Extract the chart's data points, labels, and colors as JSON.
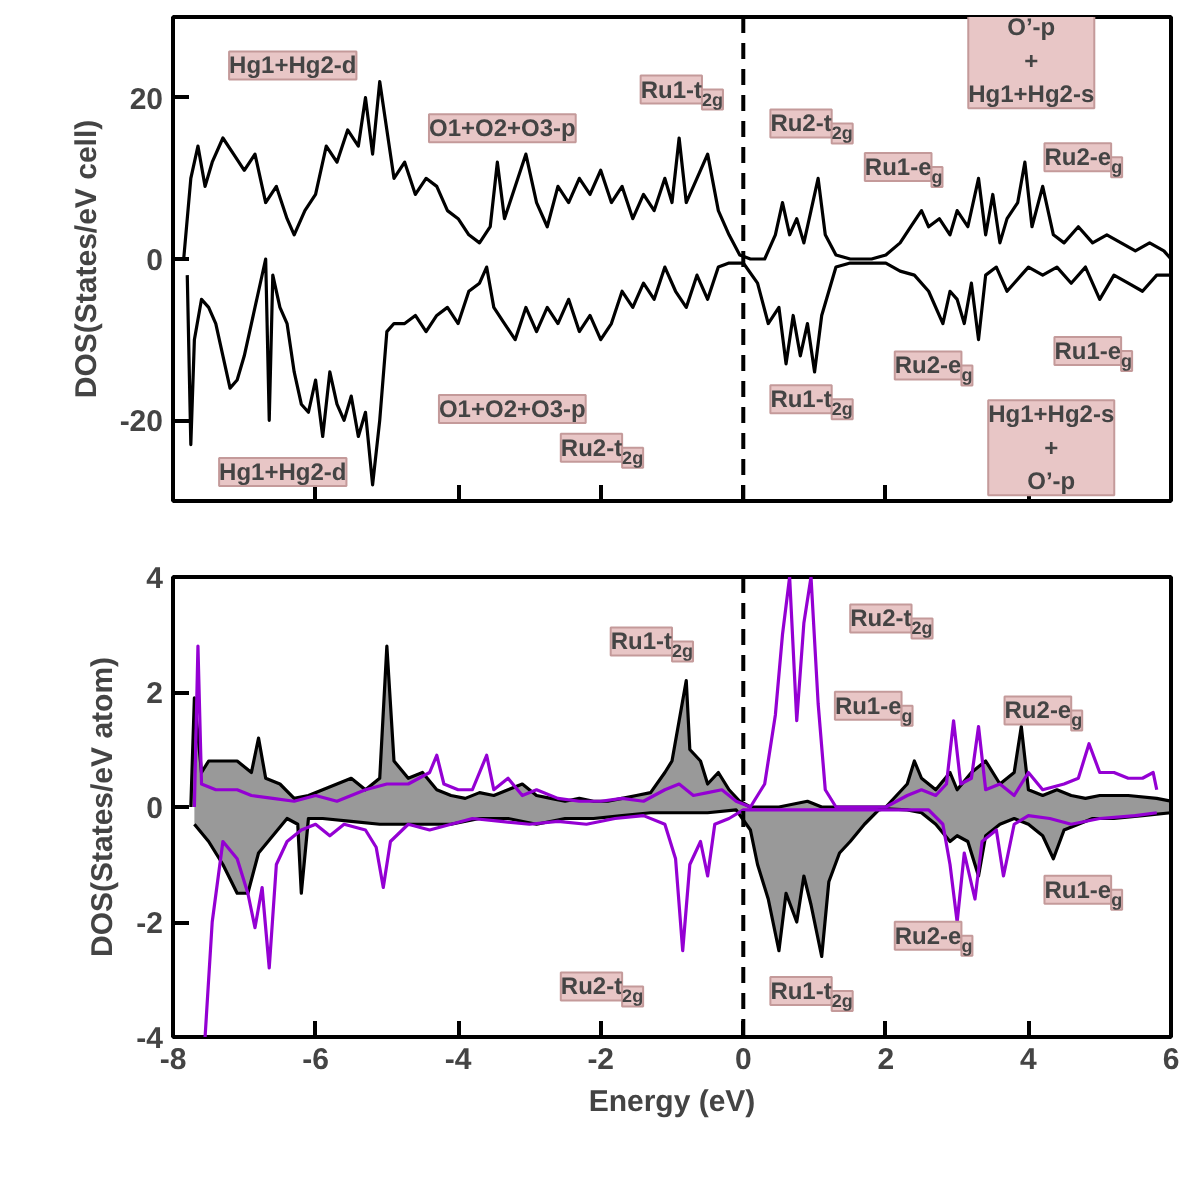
{
  "chart_data": [
    {
      "type": "line",
      "ylabel": "DOS(States/eV cell)",
      "xlim": [
        -8,
        6
      ],
      "ylim": [
        -30,
        30
      ],
      "xticks": [
        {
          "value": -8,
          "label": null
        },
        {
          "value": -6,
          "label": null
        },
        {
          "value": -4,
          "label": null
        },
        {
          "value": -2,
          "label": null
        },
        {
          "value": 0,
          "label": null
        },
        {
          "value": 2,
          "label": null
        },
        {
          "value": 4,
          "label": null
        },
        {
          "value": 6,
          "label": null
        }
      ],
      "yticks": [
        -20,
        0,
        20
      ],
      "tick_labels": "y",
      "grid": false,
      "series": [
        {
          "color": "#000000",
          "x": [
            -7.85,
            -7.75,
            -7.65,
            -7.55,
            -7.45,
            -7.3,
            -7.15,
            -7.0,
            -6.85,
            -6.7,
            -6.55,
            -6.4,
            -6.3,
            -6.15,
            -6.0,
            -5.85,
            -5.7,
            -5.55,
            -5.4,
            -5.3,
            -5.2,
            -5.1,
            -5.0,
            -4.9,
            -4.75,
            -4.6,
            -4.45,
            -4.3,
            -4.15,
            -4.0,
            -3.85,
            -3.7,
            -3.55,
            -3.45,
            -3.35,
            -3.2,
            -3.05,
            -2.9,
            -2.75,
            -2.6,
            -2.45,
            -2.3,
            -2.15,
            -2.0,
            -1.85,
            -1.7,
            -1.55,
            -1.4,
            -1.25,
            -1.1,
            -1.0,
            -0.9,
            -0.8,
            -0.65,
            -0.5,
            -0.35,
            -0.2,
            -0.05,
            0.1,
            0.3,
            0.45,
            0.55,
            0.65,
            0.75,
            0.85,
            0.95,
            1.05,
            1.15,
            1.3,
            1.5,
            1.8,
            2.0,
            2.2,
            2.35,
            2.5,
            2.6,
            2.75,
            2.9,
            3.0,
            3.15,
            3.3,
            3.4,
            3.5,
            3.6,
            3.7,
            3.85,
            3.95,
            4.05,
            4.2,
            4.35,
            4.5,
            4.7,
            4.9,
            5.1,
            5.3,
            5.5,
            5.7,
            5.9,
            6.0
          ],
          "values": [
            0,
            10,
            14,
            9,
            12,
            15,
            13,
            11,
            13,
            7,
            9,
            5,
            3,
            6,
            8,
            14,
            12,
            16,
            14,
            20,
            13,
            22,
            16,
            10,
            12,
            8,
            10,
            9,
            6,
            5,
            3,
            2,
            4,
            12,
            5,
            9,
            13,
            7,
            4,
            9,
            7,
            10,
            8,
            11,
            7,
            9,
            5,
            8,
            6,
            10,
            7,
            15,
            7,
            10,
            13,
            6,
            3,
            0.5,
            0,
            0,
            3,
            7,
            3,
            5,
            2,
            6,
            10,
            3,
            0.5,
            0,
            0,
            0.5,
            2,
            4,
            6,
            4,
            5,
            3,
            6,
            4,
            10,
            3,
            8,
            2,
            5,
            7,
            12,
            4,
            9,
            3,
            2,
            4,
            2,
            3,
            2,
            1,
            2,
            1,
            0
          ]
        },
        {
          "color": "#000000",
          "x": [
            -7.8,
            -7.75,
            -7.7,
            -7.6,
            -7.5,
            -7.4,
            -7.3,
            -7.2,
            -7.1,
            -7.0,
            -6.9,
            -6.8,
            -6.7,
            -6.65,
            -6.6,
            -6.5,
            -6.4,
            -6.3,
            -6.2,
            -6.1,
            -6.0,
            -5.9,
            -5.8,
            -5.7,
            -5.6,
            -5.5,
            -5.4,
            -5.3,
            -5.2,
            -5.1,
            -5.0,
            -4.9,
            -4.75,
            -4.6,
            -4.45,
            -4.3,
            -4.15,
            -4.0,
            -3.85,
            -3.7,
            -3.6,
            -3.5,
            -3.35,
            -3.2,
            -3.05,
            -2.9,
            -2.75,
            -2.6,
            -2.45,
            -2.3,
            -2.15,
            -2.0,
            -1.85,
            -1.7,
            -1.55,
            -1.4,
            -1.25,
            -1.1,
            -0.95,
            -0.8,
            -0.65,
            -0.5,
            -0.35,
            -0.2,
            0.0,
            0.2,
            0.35,
            0.5,
            0.6,
            0.7,
            0.8,
            0.9,
            1.0,
            1.1,
            1.2,
            1.3,
            1.5,
            1.8,
            2.0,
            2.2,
            2.4,
            2.6,
            2.8,
            2.9,
            3.0,
            3.1,
            3.2,
            3.3,
            3.4,
            3.55,
            3.7,
            3.9,
            4.0,
            4.2,
            4.4,
            4.6,
            4.8,
            5.0,
            5.2,
            5.4,
            5.6,
            5.8,
            6.0
          ],
          "values": [
            -2,
            -23,
            -10,
            -5,
            -6,
            -8,
            -12,
            -16,
            -15,
            -12,
            -8,
            -4,
            0,
            -20,
            -2,
            -6,
            -8,
            -14,
            -18,
            -19,
            -15,
            -22,
            -14,
            -18,
            -20,
            -17,
            -22,
            -19,
            -28,
            -20,
            -9,
            -8,
            -8,
            -7,
            -9,
            -7,
            -6,
            -8,
            -4,
            -3,
            -1,
            -6,
            -8,
            -10,
            -6,
            -9,
            -6,
            -8,
            -5,
            -9,
            -7,
            -10,
            -8,
            -4,
            -6,
            -3,
            -5,
            -1,
            -4,
            -6,
            -2,
            -5,
            -1,
            -0.5,
            -0.5,
            -3,
            -8,
            -6,
            -13,
            -7,
            -12,
            -8,
            -14,
            -7,
            -4,
            -1,
            -0.5,
            -0.5,
            -0.5,
            -1.5,
            -2,
            -4,
            -8,
            -4,
            -5,
            -8,
            -3,
            -10,
            -2,
            -1,
            -4,
            -2,
            -1,
            -2,
            -1,
            -3,
            -1,
            -5,
            -2,
            -3,
            -4,
            -2,
            -2
          ]
        }
      ],
      "ref_lines": [
        {
          "axis": "x",
          "value": 0,
          "line_style": "dashed",
          "color": "#000000"
        }
      ],
      "annotations": [
        "Hg1+Hg2-d",
        "O1+O2+O3-p",
        "Ru1-t$_{2g}$",
        "Ru2-t$_{2g}$",
        "O’-p\n+\nHg1+Hg2-s",
        "Ru1-e$_{g}$",
        "Ru2-e$_{g}$",
        "O1+O2+O3-p",
        "Hg1+Hg2-d",
        "Ru2-t$_{2g}$",
        "Ru1-t$_{2g}$",
        "Ru2-e$_{g}$",
        "Ru1-e$_{g}$",
        "Hg1+Hg2-s\n+\nO’-p"
      ]
    },
    {
      "type": "area",
      "xlabel": "Energy (eV)",
      "ylabel": "DOS(States/eV atom)",
      "xlim": [
        -8,
        6
      ],
      "ylim": [
        -4,
        4
      ],
      "xticks": [
        -8,
        -6,
        -4,
        -2,
        0,
        2,
        4,
        6
      ],
      "yticks": [
        -4,
        -2,
        0,
        2,
        4
      ],
      "grid": false,
      "series": [
        {
          "type": "area",
          "color": "#000000",
          "x": [
            -7.75,
            -7.7,
            -7.6,
            -7.5,
            -7.3,
            -7.1,
            -6.9,
            -6.8,
            -6.7,
            -6.5,
            -6.3,
            -6.1,
            -5.9,
            -5.7,
            -5.5,
            -5.3,
            -5.1,
            -5.0,
            -4.9,
            -4.7,
            -4.5,
            -4.3,
            -4.1,
            -3.9,
            -3.7,
            -3.5,
            -3.3,
            -3.1,
            -2.9,
            -2.7,
            -2.5,
            -2.3,
            -2.1,
            -1.9,
            -1.7,
            -1.5,
            -1.3,
            -1.1,
            -1.0,
            -0.9,
            -0.8,
            -0.75,
            -0.6,
            -0.5,
            -0.35,
            -0.2,
            -0.05,
            0.1,
            0.5,
            0.9,
            1.1,
            1.5,
            2.0,
            2.3,
            2.4,
            2.5,
            2.7,
            2.9,
            3.0,
            3.2,
            3.4,
            3.6,
            3.8,
            3.9,
            4.0,
            4.2,
            4.4,
            4.6,
            4.8,
            5.0,
            5.4,
            5.8,
            6.0
          ],
          "values": [
            0,
            1.9,
            0.6,
            0.8,
            0.8,
            0.8,
            0.6,
            1.2,
            0.5,
            0.4,
            0.15,
            0.2,
            0.3,
            0.4,
            0.5,
            0.3,
            0.5,
            2.8,
            0.8,
            0.5,
            0.6,
            0.3,
            0.2,
            0.15,
            0.25,
            0.2,
            0.3,
            0.4,
            0.2,
            0.15,
            0.1,
            0.15,
            0.1,
            0.1,
            0.15,
            0.2,
            0.25,
            0.6,
            0.8,
            1.5,
            2.2,
            1.0,
            0.8,
            0.4,
            0.6,
            0.3,
            0.1,
            0,
            0,
            0.1,
            0,
            0,
            0,
            0.4,
            0.8,
            0.5,
            0.3,
            0.6,
            0.3,
            0.6,
            0.8,
            0.4,
            0.6,
            1.4,
            0.3,
            0.2,
            0.3,
            0.2,
            0.15,
            0.2,
            0.2,
            0.15,
            0.1
          ]
        },
        {
          "type": "area",
          "color": "#000000",
          "x": [
            -7.7,
            -7.5,
            -7.3,
            -7.1,
            -6.95,
            -6.8,
            -6.6,
            -6.4,
            -6.25,
            -6.2,
            -6.1,
            -5.9,
            -5.5,
            -5.1,
            -4.9,
            -4.5,
            -4.1,
            -3.7,
            -3.3,
            -2.9,
            -2.5,
            -2.1,
            -1.7,
            -1.3,
            -0.9,
            -0.5,
            -0.1,
            0.1,
            0.2,
            0.35,
            0.5,
            0.6,
            0.75,
            0.85,
            0.95,
            1.1,
            1.2,
            1.35,
            1.5,
            1.7,
            1.9,
            2.0,
            2.3,
            2.5,
            2.7,
            2.9,
            3.0,
            3.15,
            3.3,
            3.4,
            3.6,
            3.8,
            4.0,
            4.2,
            4.35,
            4.5,
            4.7,
            4.9,
            5.2,
            5.6,
            6.0
          ],
          "values": [
            -0.3,
            -0.6,
            -1.0,
            -1.5,
            -1.5,
            -0.8,
            -0.5,
            -0.2,
            -0.3,
            -1.5,
            -0.2,
            -0.2,
            -0.25,
            -0.3,
            -0.3,
            -0.3,
            -0.3,
            -0.2,
            -0.2,
            -0.3,
            -0.2,
            -0.2,
            -0.15,
            -0.1,
            -0.1,
            -0.1,
            -0.05,
            -0.4,
            -1.0,
            -1.6,
            -2.5,
            -1.5,
            -2.0,
            -1.2,
            -1.7,
            -2.6,
            -1.3,
            -0.8,
            -0.6,
            -0.3,
            -0.05,
            -0.03,
            -0.05,
            -0.1,
            -0.3,
            -0.6,
            -0.5,
            -0.6,
            -1.2,
            -0.5,
            -0.3,
            -0.2,
            -0.3,
            -0.5,
            -0.9,
            -0.4,
            -0.3,
            -0.2,
            -0.2,
            -0.15,
            -0.1
          ]
        },
        {
          "type": "line",
          "color": "#9400d3",
          "x": [
            -7.7,
            -7.65,
            -7.6,
            -7.4,
            -7.1,
            -6.9,
            -6.6,
            -6.3,
            -6.0,
            -5.7,
            -5.3,
            -5.0,
            -4.7,
            -4.4,
            -4.3,
            -4.2,
            -4.0,
            -3.8,
            -3.6,
            -3.5,
            -3.3,
            -3.1,
            -2.9,
            -2.6,
            -2.3,
            -2.0,
            -1.7,
            -1.4,
            -1.1,
            -0.9,
            -0.7,
            -0.5,
            -0.3,
            -0.1,
            0.1,
            0.3,
            0.45,
            0.55,
            0.65,
            0.75,
            0.85,
            0.95,
            1.05,
            1.15,
            1.3,
            2.0,
            2.3,
            2.5,
            2.7,
            2.85,
            2.95,
            3.05,
            3.2,
            3.3,
            3.4,
            3.6,
            3.8,
            4.0,
            4.2,
            4.5,
            4.7,
            4.85,
            5.0,
            5.2,
            5.4,
            5.6,
            5.75,
            5.8
          ],
          "values": [
            0,
            2.8,
            0.4,
            0.3,
            0.3,
            0.2,
            0.15,
            0.1,
            0.2,
            0.1,
            0.3,
            0.4,
            0.4,
            0.6,
            0.9,
            0.4,
            0.3,
            0.3,
            0.9,
            0.3,
            0.5,
            0.2,
            0.3,
            0.15,
            0.1,
            0.1,
            0.15,
            0.1,
            0.3,
            0.4,
            0.2,
            0.25,
            0.3,
            0.1,
            0,
            0.4,
            1.6,
            3.0,
            4.0,
            1.5,
            3.2,
            4.0,
            1.8,
            0.3,
            0,
            0,
            0.2,
            0.3,
            0.2,
            0.4,
            1.5,
            0.4,
            0.5,
            1.4,
            0.3,
            0.4,
            0.2,
            0.6,
            0.3,
            0.4,
            0.5,
            1.1,
            0.6,
            0.6,
            0.5,
            0.5,
            0.6,
            0.3
          ]
        },
        {
          "type": "line",
          "color": "#9400d3",
          "x": [
            -7.55,
            -7.45,
            -7.3,
            -7.1,
            -6.95,
            -6.85,
            -6.75,
            -6.65,
            -6.55,
            -6.4,
            -6.2,
            -6.0,
            -5.8,
            -5.6,
            -5.3,
            -5.15,
            -5.05,
            -4.95,
            -4.7,
            -4.4,
            -4.1,
            -3.8,
            -3.4,
            -3.0,
            -2.6,
            -2.2,
            -1.8,
            -1.4,
            -1.1,
            -0.95,
            -0.85,
            -0.75,
            -0.6,
            -0.5,
            -0.4,
            -0.2,
            0.0,
            2.6,
            2.8,
            2.9,
            3.0,
            3.1,
            3.25,
            3.35,
            3.55,
            3.65,
            3.8,
            4.0,
            4.3,
            4.6,
            5.0,
            5.5,
            5.8
          ],
          "values": [
            -4.0,
            -2.0,
            -0.6,
            -0.9,
            -1.5,
            -2.1,
            -1.4,
            -2.8,
            -1.0,
            -0.6,
            -0.4,
            -0.3,
            -0.5,
            -0.3,
            -0.4,
            -0.7,
            -1.4,
            -0.6,
            -0.3,
            -0.4,
            -0.3,
            -0.2,
            -0.25,
            -0.3,
            -0.25,
            -0.3,
            -0.2,
            -0.15,
            -0.3,
            -0.9,
            -2.5,
            -1.0,
            -0.6,
            -1.2,
            -0.3,
            -0.2,
            -0.05,
            -0.05,
            -0.3,
            -1.0,
            -2.0,
            -0.8,
            -1.6,
            -0.6,
            -0.4,
            -1.2,
            -0.3,
            -0.15,
            -0.2,
            -0.3,
            -0.2,
            -0.15,
            -0.1
          ]
        }
      ],
      "ref_lines": [
        {
          "axis": "x",
          "value": 0,
          "line_style": "dashed",
          "color": "#000000"
        }
      ],
      "annotations": [
        "Ru1-t$_{2g}$",
        "Ru2-t$_{2g}$",
        "Ru1-e$_{g}$",
        "Ru2-e$_{g}$",
        "Ru1-e$_{g}$",
        "Ru2-e$_{g}$",
        "Ru2-t$_{2g}$",
        "Ru1-t$_{2g}$"
      ]
    }
  ]
}
